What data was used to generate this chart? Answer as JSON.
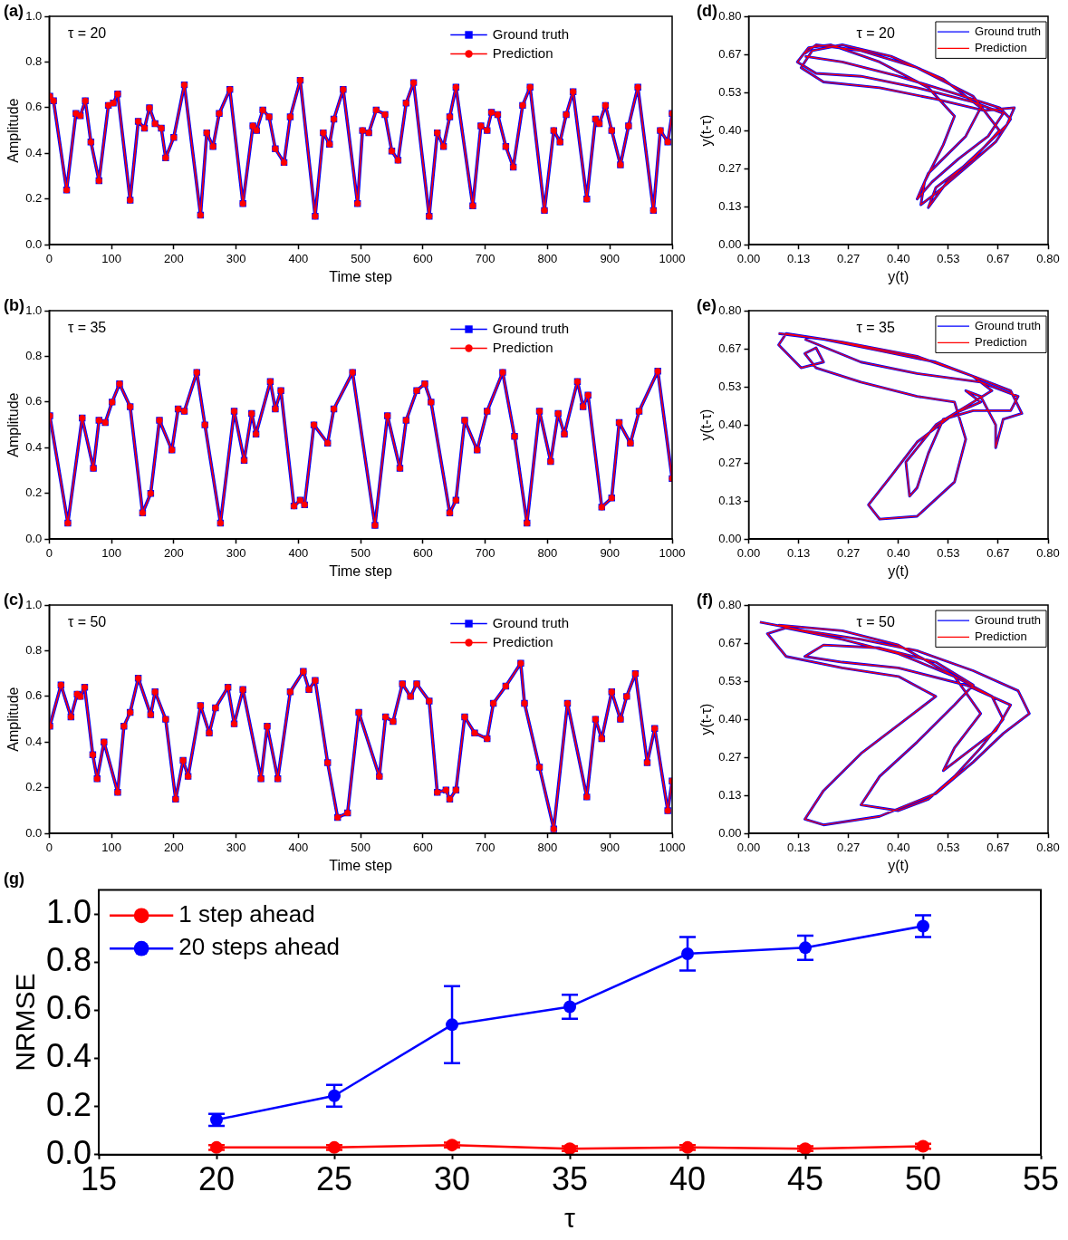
{
  "chart_data": [
    {
      "type": "line",
      "title": "(a)",
      "annotations": [
        "τ = 20"
      ],
      "xlabel": "Time step",
      "ylabel": "Amplitude",
      "legend": "top right",
      "grid": false,
      "xlim": [
        0,
        1000
      ],
      "ylim": [
        0,
        1
      ],
      "xticks": [
        0,
        100,
        200,
        300,
        400,
        500,
        600,
        700,
        800,
        900,
        1000
      ],
      "yticks": [
        {
          "value": 0,
          "label": "0.0"
        },
        {
          "value": 0.2,
          "label": "0.2"
        },
        {
          "value": 0.4,
          "label": "0.4"
        },
        {
          "value": 0.6,
          "label": "0.6"
        },
        {
          "value": 0.8,
          "label": "0.8"
        },
        {
          "value": 1,
          "label": "1.0"
        }
      ],
      "x": [
        1,
        7,
        28,
        43,
        50,
        58,
        67,
        80,
        95,
        103,
        110,
        130,
        143,
        153,
        161,
        170,
        180,
        187,
        200,
        217,
        243,
        253,
        263,
        273,
        290,
        311,
        327,
        333,
        343,
        353,
        363,
        377,
        387,
        403,
        427,
        440,
        450,
        457,
        472,
        495,
        503,
        513,
        525,
        539,
        550,
        560,
        573,
        585,
        610,
        623,
        633,
        643,
        653,
        680,
        693,
        703,
        710,
        720,
        733,
        745,
        760,
        772,
        795,
        810,
        820,
        830,
        841,
        863,
        877,
        883,
        893,
        903,
        917,
        930,
        945,
        970,
        981,
        993,
        1000
      ],
      "series": [
        {
          "name": "Ground truth",
          "color": "#0000ff",
          "marker": "square",
          "values": [
            0.65,
            0.63,
            0.24,
            0.575,
            0.565,
            0.63,
            0.45,
            0.28,
            0.61,
            0.62,
            0.66,
            0.195,
            0.54,
            0.51,
            0.6,
            0.53,
            0.51,
            0.38,
            0.47,
            0.7,
            0.13,
            0.49,
            0.43,
            0.575,
            0.68,
            0.18,
            0.52,
            0.5,
            0.59,
            0.56,
            0.42,
            0.36,
            0.56,
            0.72,
            0.125,
            0.49,
            0.44,
            0.55,
            0.68,
            0.18,
            0.5,
            0.49,
            0.59,
            0.57,
            0.41,
            0.37,
            0.62,
            0.71,
            0.125,
            0.49,
            0.43,
            0.56,
            0.69,
            0.17,
            0.52,
            0.5,
            0.58,
            0.57,
            0.43,
            0.34,
            0.61,
            0.69,
            0.15,
            0.5,
            0.45,
            0.57,
            0.67,
            0.2,
            0.55,
            0.53,
            0.61,
            0.5,
            0.35,
            0.52,
            0.69,
            0.15,
            0.5,
            0.45,
            0.575
          ]
        },
        {
          "name": "Prediction",
          "color": "#ff0000",
          "marker": "circle",
          "values": [
            0.65,
            0.63,
            0.24,
            0.575,
            0.565,
            0.63,
            0.45,
            0.28,
            0.61,
            0.62,
            0.66,
            0.195,
            0.54,
            0.51,
            0.6,
            0.53,
            0.51,
            0.38,
            0.47,
            0.7,
            0.13,
            0.49,
            0.43,
            0.575,
            0.68,
            0.18,
            0.52,
            0.5,
            0.59,
            0.56,
            0.42,
            0.36,
            0.56,
            0.72,
            0.125,
            0.49,
            0.44,
            0.55,
            0.68,
            0.18,
            0.5,
            0.49,
            0.59,
            0.57,
            0.41,
            0.37,
            0.62,
            0.71,
            0.125,
            0.49,
            0.43,
            0.56,
            0.69,
            0.17,
            0.52,
            0.5,
            0.58,
            0.57,
            0.43,
            0.34,
            0.61,
            0.69,
            0.15,
            0.5,
            0.45,
            0.57,
            0.67,
            0.2,
            0.55,
            0.53,
            0.61,
            0.5,
            0.35,
            0.52,
            0.69,
            0.15,
            0.5,
            0.45,
            0.575
          ]
        }
      ]
    },
    {
      "type": "line",
      "title": "(d)",
      "annotations": [
        "τ = 20"
      ],
      "xlabel": "y(t)",
      "ylabel": "y(t-τ)",
      "legend": "top right",
      "grid": false,
      "xlim": [
        0,
        0.8
      ],
      "ylim": [
        0,
        0.8
      ],
      "xticks": [
        {
          "value": 0,
          "label": "0.00"
        },
        {
          "value": 0.1333,
          "label": "0.13"
        },
        {
          "value": 0.2667,
          "label": "0.27"
        },
        {
          "value": 0.4,
          "label": "0.40"
        },
        {
          "value": 0.5333,
          "label": "0.53"
        },
        {
          "value": 0.6667,
          "label": "0.67"
        },
        {
          "value": 0.8,
          "label": "0.80"
        }
      ],
      "yticks": [
        {
          "value": 0,
          "label": "0.00"
        },
        {
          "value": 0.1333,
          "label": "0.13"
        },
        {
          "value": 0.2667,
          "label": "0.27"
        },
        {
          "value": 0.4,
          "label": "0.40"
        },
        {
          "value": 0.5333,
          "label": "0.53"
        },
        {
          "value": 0.6667,
          "label": "0.67"
        },
        {
          "value": 0.8,
          "label": "0.80"
        }
      ],
      "series": [
        {
          "name": "Ground truth",
          "color": "#0000ff",
          "marker": "none",
          "x": [
            0.15,
            0.25,
            0.4,
            0.55,
            0.67,
            0.7,
            0.66,
            0.58,
            0.5,
            0.46,
            0.47,
            0.52,
            0.55,
            0.48,
            0.35,
            0.22,
            0.16,
            0.13,
            0.18,
            0.3,
            0.45,
            0.6,
            0.68,
            0.64,
            0.56,
            0.49,
            0.45,
            0.48,
            0.58,
            0.62,
            0.52,
            0.38,
            0.25,
            0.17,
            0.14,
            0.2,
            0.35,
            0.5,
            0.63,
            0.71,
            0.69,
            0.62,
            0.53,
            0.48,
            0.5,
            0.6,
            0.67,
            0.6,
            0.45,
            0.3,
            0.18,
            0.15
          ],
          "values": [
            0.66,
            0.64,
            0.59,
            0.53,
            0.48,
            0.44,
            0.36,
            0.27,
            0.18,
            0.14,
            0.22,
            0.35,
            0.45,
            0.55,
            0.64,
            0.7,
            0.69,
            0.64,
            0.6,
            0.59,
            0.55,
            0.5,
            0.46,
            0.38,
            0.3,
            0.22,
            0.16,
            0.25,
            0.38,
            0.48,
            0.58,
            0.66,
            0.7,
            0.68,
            0.62,
            0.57,
            0.55,
            0.51,
            0.47,
            0.48,
            0.42,
            0.33,
            0.22,
            0.13,
            0.2,
            0.3,
            0.4,
            0.52,
            0.62,
            0.68,
            0.7,
            0.67
          ]
        },
        {
          "name": "Prediction",
          "color": "#ff0000",
          "marker": "none",
          "x": [
            0.15,
            0.25,
            0.4,
            0.55,
            0.67,
            0.7,
            0.66,
            0.58,
            0.5,
            0.46,
            0.47,
            0.52,
            0.55,
            0.48,
            0.35,
            0.22,
            0.16,
            0.13,
            0.18,
            0.3,
            0.45,
            0.6,
            0.68,
            0.64,
            0.56,
            0.49,
            0.45,
            0.48,
            0.58,
            0.62,
            0.52,
            0.38,
            0.25,
            0.17,
            0.14,
            0.2,
            0.35,
            0.5,
            0.63,
            0.71,
            0.69,
            0.62,
            0.53,
            0.48,
            0.5,
            0.6,
            0.67,
            0.6,
            0.45,
            0.3,
            0.18,
            0.15
          ],
          "values": [
            0.66,
            0.64,
            0.59,
            0.53,
            0.48,
            0.44,
            0.36,
            0.27,
            0.18,
            0.14,
            0.22,
            0.35,
            0.45,
            0.55,
            0.64,
            0.7,
            0.69,
            0.64,
            0.6,
            0.59,
            0.55,
            0.5,
            0.46,
            0.38,
            0.3,
            0.22,
            0.16,
            0.25,
            0.38,
            0.48,
            0.58,
            0.66,
            0.7,
            0.68,
            0.62,
            0.57,
            0.55,
            0.51,
            0.47,
            0.48,
            0.42,
            0.33,
            0.22,
            0.13,
            0.2,
            0.3,
            0.4,
            0.52,
            0.62,
            0.68,
            0.7,
            0.67
          ]
        }
      ]
    },
    {
      "type": "line",
      "title": "(b)",
      "annotations": [
        "τ = 35"
      ],
      "xlabel": "Time step",
      "ylabel": "Amplitude",
      "legend": "top right",
      "grid": false,
      "xlim": [
        0,
        1000
      ],
      "ylim": [
        0,
        1
      ],
      "xticks": [
        0,
        100,
        200,
        300,
        400,
        500,
        600,
        700,
        800,
        900,
        1000
      ],
      "yticks": [
        {
          "value": 0,
          "label": "0.0"
        },
        {
          "value": 0.2,
          "label": "0.2"
        },
        {
          "value": 0.4,
          "label": "0.4"
        },
        {
          "value": 0.6,
          "label": "0.6"
        },
        {
          "value": 0.8,
          "label": "0.8"
        },
        {
          "value": 1,
          "label": "1.0"
        }
      ],
      "x": [
        1,
        30,
        53,
        71,
        80,
        90,
        101,
        113,
        130,
        150,
        163,
        177,
        197,
        207,
        217,
        237,
        250,
        275,
        297,
        313,
        325,
        332,
        355,
        363,
        372,
        393,
        403,
        410,
        425,
        447,
        457,
        487,
        523,
        543,
        563,
        573,
        590,
        603,
        613,
        643,
        653,
        667,
        687,
        703,
        728,
        747,
        767,
        787,
        805,
        817,
        827,
        848,
        857,
        865,
        887,
        903,
        915,
        933,
        947,
        977,
        1000
      ],
      "series": [
        {
          "name": "Ground truth",
          "color": "#0000ff",
          "marker": "square",
          "values": [
            0.54,
            0.07,
            0.53,
            0.31,
            0.52,
            0.51,
            0.6,
            0.68,
            0.58,
            0.115,
            0.2,
            0.52,
            0.39,
            0.57,
            0.56,
            0.73,
            0.5,
            0.07,
            0.56,
            0.345,
            0.55,
            0.46,
            0.69,
            0.57,
            0.65,
            0.145,
            0.17,
            0.15,
            0.5,
            0.42,
            0.57,
            0.73,
            0.06,
            0.54,
            0.31,
            0.52,
            0.65,
            0.68,
            0.6,
            0.115,
            0.17,
            0.52,
            0.39,
            0.56,
            0.73,
            0.45,
            0.07,
            0.56,
            0.34,
            0.55,
            0.46,
            0.69,
            0.58,
            0.63,
            0.14,
            0.18,
            0.51,
            0.42,
            0.56,
            0.735,
            0.265
          ]
        },
        {
          "name": "Prediction",
          "color": "#ff0000",
          "marker": "circle",
          "values": [
            0.54,
            0.07,
            0.53,
            0.31,
            0.52,
            0.51,
            0.6,
            0.68,
            0.58,
            0.115,
            0.2,
            0.52,
            0.39,
            0.57,
            0.56,
            0.73,
            0.5,
            0.07,
            0.56,
            0.345,
            0.55,
            0.46,
            0.69,
            0.57,
            0.65,
            0.145,
            0.17,
            0.15,
            0.5,
            0.42,
            0.57,
            0.73,
            0.06,
            0.54,
            0.31,
            0.52,
            0.65,
            0.68,
            0.6,
            0.115,
            0.17,
            0.52,
            0.39,
            0.56,
            0.73,
            0.45,
            0.07,
            0.56,
            0.34,
            0.55,
            0.46,
            0.69,
            0.58,
            0.63,
            0.14,
            0.18,
            0.51,
            0.42,
            0.56,
            0.735,
            0.265
          ]
        }
      ]
    },
    {
      "type": "line",
      "title": "(e)",
      "annotations": [
        "τ = 35"
      ],
      "xlabel": "y(t)",
      "ylabel": "y(t-τ)",
      "legend": "top right",
      "grid": false,
      "xlim": [
        0,
        0.8
      ],
      "ylim": [
        0,
        0.8
      ],
      "xticks": [
        {
          "value": 0,
          "label": "0.00"
        },
        {
          "value": 0.1333,
          "label": "0.13"
        },
        {
          "value": 0.2667,
          "label": "0.27"
        },
        {
          "value": 0.4,
          "label": "0.40"
        },
        {
          "value": 0.5333,
          "label": "0.53"
        },
        {
          "value": 0.6667,
          "label": "0.67"
        },
        {
          "value": 0.8,
          "label": "0.80"
        }
      ],
      "yticks": [
        {
          "value": 0,
          "label": "0.00"
        },
        {
          "value": 0.1333,
          "label": "0.13"
        },
        {
          "value": 0.2667,
          "label": "0.27"
        },
        {
          "value": 0.4,
          "label": "0.40"
        },
        {
          "value": 0.5333,
          "label": "0.53"
        },
        {
          "value": 0.6667,
          "label": "0.67"
        },
        {
          "value": 0.8,
          "label": "0.80"
        }
      ],
      "series": [
        {
          "name": "Ground truth",
          "color": "#0000ff",
          "marker": "none",
          "x": [
            0.08,
            0.2,
            0.35,
            0.5,
            0.62,
            0.7,
            0.73,
            0.68,
            0.66,
            0.66,
            0.62,
            0.58,
            0.62,
            0.55,
            0.45,
            0.38,
            0.32,
            0.35,
            0.45,
            0.55,
            0.58,
            0.55,
            0.45,
            0.3,
            0.18,
            0.15,
            0.18,
            0.2,
            0.14,
            0.08,
            0.1,
            0.25,
            0.45,
            0.6,
            0.65,
            0.6,
            0.5,
            0.42,
            0.43,
            0.45,
            0.48,
            0.52,
            0.6,
            0.7,
            0.72,
            0.62,
            0.45,
            0.3,
            0.15
          ],
          "values": [
            0.72,
            0.7,
            0.66,
            0.62,
            0.56,
            0.52,
            0.44,
            0.42,
            0.32,
            0.4,
            0.5,
            0.52,
            0.48,
            0.44,
            0.34,
            0.22,
            0.12,
            0.07,
            0.08,
            0.2,
            0.35,
            0.48,
            0.5,
            0.55,
            0.6,
            0.65,
            0.67,
            0.62,
            0.6,
            0.68,
            0.72,
            0.69,
            0.64,
            0.57,
            0.52,
            0.48,
            0.4,
            0.27,
            0.15,
            0.18,
            0.3,
            0.42,
            0.45,
            0.45,
            0.5,
            0.55,
            0.58,
            0.62,
            0.7
          ]
        },
        {
          "name": "Prediction",
          "color": "#ff0000",
          "marker": "none",
          "x": [
            0.08,
            0.2,
            0.35,
            0.5,
            0.62,
            0.7,
            0.73,
            0.68,
            0.66,
            0.66,
            0.62,
            0.58,
            0.62,
            0.55,
            0.45,
            0.38,
            0.32,
            0.35,
            0.45,
            0.55,
            0.58,
            0.55,
            0.45,
            0.3,
            0.18,
            0.15,
            0.18,
            0.2,
            0.14,
            0.08,
            0.1,
            0.25,
            0.45,
            0.6,
            0.65,
            0.6,
            0.5,
            0.42,
            0.43,
            0.45,
            0.48,
            0.52,
            0.6,
            0.7,
            0.72,
            0.62,
            0.45,
            0.3,
            0.15
          ],
          "values": [
            0.72,
            0.7,
            0.66,
            0.62,
            0.56,
            0.52,
            0.44,
            0.42,
            0.32,
            0.4,
            0.5,
            0.52,
            0.48,
            0.44,
            0.34,
            0.22,
            0.12,
            0.07,
            0.08,
            0.2,
            0.35,
            0.48,
            0.5,
            0.55,
            0.6,
            0.65,
            0.67,
            0.62,
            0.6,
            0.68,
            0.72,
            0.69,
            0.64,
            0.57,
            0.52,
            0.48,
            0.4,
            0.27,
            0.15,
            0.18,
            0.3,
            0.42,
            0.45,
            0.45,
            0.5,
            0.55,
            0.58,
            0.62,
            0.7
          ]
        }
      ]
    },
    {
      "type": "line",
      "title": "(c)",
      "annotations": [
        "τ = 50"
      ],
      "xlabel": "Time step",
      "ylabel": "Amplitude",
      "legend": "top right",
      "grid": false,
      "xlim": [
        0,
        1000
      ],
      "ylim": [
        0,
        1
      ],
      "xticks": [
        0,
        100,
        200,
        300,
        400,
        500,
        600,
        700,
        800,
        900,
        1000
      ],
      "yticks": [
        {
          "value": 0,
          "label": "0.0"
        },
        {
          "value": 0.2,
          "label": "0.2"
        },
        {
          "value": 0.4,
          "label": "0.4"
        },
        {
          "value": 0.6,
          "label": "0.6"
        },
        {
          "value": 0.8,
          "label": "0.8"
        },
        {
          "value": 1,
          "label": "1.0"
        }
      ],
      "x": [
        1,
        19,
        35,
        45,
        50,
        57,
        70,
        77,
        88,
        110,
        120,
        130,
        143,
        163,
        170,
        187,
        203,
        215,
        223,
        243,
        257,
        267,
        287,
        297,
        311,
        340,
        350,
        367,
        387,
        408,
        417,
        427,
        447,
        463,
        479,
        497,
        530,
        540,
        552,
        567,
        580,
        590,
        610,
        623,
        637,
        643,
        653,
        667,
        683,
        703,
        713,
        733,
        757,
        763,
        787,
        810,
        832,
        863,
        877,
        887,
        903,
        917,
        927,
        941,
        960,
        972,
        993,
        1000
      ],
      "series": [
        {
          "name": "Ground truth",
          "color": "#0000ff",
          "marker": "square",
          "values": [
            0.47,
            0.65,
            0.51,
            0.61,
            0.6,
            0.64,
            0.345,
            0.24,
            0.4,
            0.18,
            0.47,
            0.53,
            0.68,
            0.52,
            0.62,
            0.5,
            0.15,
            0.32,
            0.25,
            0.56,
            0.44,
            0.55,
            0.64,
            0.48,
            0.63,
            0.24,
            0.47,
            0.24,
            0.62,
            0.71,
            0.63,
            0.67,
            0.31,
            0.07,
            0.09,
            0.53,
            0.25,
            0.51,
            0.49,
            0.655,
            0.6,
            0.655,
            0.58,
            0.18,
            0.19,
            0.15,
            0.19,
            0.51,
            0.44,
            0.415,
            0.57,
            0.645,
            0.745,
            0.57,
            0.29,
            0.02,
            0.57,
            0.16,
            0.5,
            0.415,
            0.62,
            0.5,
            0.6,
            0.7,
            0.31,
            0.46,
            0.1,
            0.23
          ]
        },
        {
          "name": "Prediction",
          "color": "#ff0000",
          "marker": "circle",
          "values": [
            0.47,
            0.65,
            0.51,
            0.61,
            0.6,
            0.64,
            0.345,
            0.24,
            0.4,
            0.18,
            0.47,
            0.53,
            0.68,
            0.52,
            0.62,
            0.5,
            0.15,
            0.32,
            0.25,
            0.56,
            0.44,
            0.55,
            0.64,
            0.48,
            0.63,
            0.24,
            0.47,
            0.24,
            0.62,
            0.71,
            0.63,
            0.67,
            0.31,
            0.07,
            0.09,
            0.53,
            0.25,
            0.51,
            0.49,
            0.655,
            0.6,
            0.655,
            0.58,
            0.18,
            0.19,
            0.15,
            0.19,
            0.51,
            0.44,
            0.415,
            0.57,
            0.645,
            0.745,
            0.57,
            0.29,
            0.02,
            0.57,
            0.16,
            0.5,
            0.415,
            0.62,
            0.5,
            0.6,
            0.7,
            0.31,
            0.46,
            0.1,
            0.23
          ]
        }
      ]
    },
    {
      "type": "line",
      "title": "(f)",
      "annotations": [
        "τ = 50"
      ],
      "xlabel": "y(t)",
      "ylabel": "y(t-τ)",
      "legend": "top right",
      "grid": false,
      "xlim": [
        0,
        0.8
      ],
      "ylim": [
        0,
        0.8
      ],
      "xticks": [
        {
          "value": 0,
          "label": "0.00"
        },
        {
          "value": 0.1333,
          "label": "0.13"
        },
        {
          "value": 0.2667,
          "label": "0.27"
        },
        {
          "value": 0.4,
          "label": "0.40"
        },
        {
          "value": 0.5333,
          "label": "0.53"
        },
        {
          "value": 0.6667,
          "label": "0.67"
        },
        {
          "value": 0.8,
          "label": "0.80"
        }
      ],
      "yticks": [
        {
          "value": 0,
          "label": "0.00"
        },
        {
          "value": 0.1333,
          "label": "0.13"
        },
        {
          "value": 0.2667,
          "label": "0.27"
        },
        {
          "value": 0.4,
          "label": "0.40"
        },
        {
          "value": 0.5333,
          "label": "0.53"
        },
        {
          "value": 0.6667,
          "label": "0.67"
        },
        {
          "value": 0.8,
          "label": "0.80"
        }
      ],
      "series": [
        {
          "name": "Ground truth",
          "color": "#0000ff",
          "marker": "none",
          "x": [
            0.03,
            0.15,
            0.3,
            0.45,
            0.6,
            0.72,
            0.75,
            0.68,
            0.6,
            0.5,
            0.35,
            0.2,
            0.15,
            0.2,
            0.3,
            0.42,
            0.5,
            0.4,
            0.25,
            0.1,
            0.05,
            0.1,
            0.25,
            0.4,
            0.55,
            0.65,
            0.68,
            0.62,
            0.55,
            0.48,
            0.4,
            0.3,
            0.35,
            0.45,
            0.55,
            0.6,
            0.5,
            0.35,
            0.2,
            0.15,
            0.25,
            0.4,
            0.58,
            0.7,
            0.66,
            0.58,
            0.52,
            0.55,
            0.62,
            0.55,
            0.4,
            0.25,
            0.08
          ],
          "values": [
            0.74,
            0.71,
            0.68,
            0.64,
            0.57,
            0.5,
            0.42,
            0.35,
            0.25,
            0.14,
            0.06,
            0.03,
            0.05,
            0.15,
            0.28,
            0.4,
            0.48,
            0.55,
            0.58,
            0.62,
            0.7,
            0.72,
            0.68,
            0.63,
            0.55,
            0.48,
            0.4,
            0.3,
            0.2,
            0.12,
            0.08,
            0.1,
            0.2,
            0.32,
            0.45,
            0.52,
            0.6,
            0.65,
            0.66,
            0.62,
            0.6,
            0.58,
            0.52,
            0.45,
            0.36,
            0.28,
            0.22,
            0.3,
            0.42,
            0.55,
            0.66,
            0.71,
            0.73
          ]
        },
        {
          "name": "Prediction",
          "color": "#ff0000",
          "marker": "none",
          "x": [
            0.03,
            0.15,
            0.3,
            0.45,
            0.6,
            0.72,
            0.75,
            0.68,
            0.6,
            0.5,
            0.35,
            0.2,
            0.15,
            0.2,
            0.3,
            0.42,
            0.5,
            0.4,
            0.25,
            0.1,
            0.05,
            0.1,
            0.25,
            0.4,
            0.55,
            0.65,
            0.68,
            0.62,
            0.55,
            0.48,
            0.4,
            0.3,
            0.35,
            0.45,
            0.55,
            0.6,
            0.5,
            0.35,
            0.2,
            0.15,
            0.25,
            0.4,
            0.58,
            0.7,
            0.66,
            0.58,
            0.52,
            0.55,
            0.62,
            0.55,
            0.4,
            0.25,
            0.08
          ],
          "values": [
            0.74,
            0.71,
            0.68,
            0.64,
            0.57,
            0.5,
            0.42,
            0.35,
            0.25,
            0.14,
            0.06,
            0.03,
            0.05,
            0.15,
            0.28,
            0.4,
            0.48,
            0.55,
            0.58,
            0.62,
            0.7,
            0.72,
            0.68,
            0.63,
            0.55,
            0.48,
            0.4,
            0.3,
            0.2,
            0.12,
            0.08,
            0.1,
            0.2,
            0.32,
            0.45,
            0.52,
            0.6,
            0.65,
            0.66,
            0.62,
            0.6,
            0.58,
            0.52,
            0.45,
            0.36,
            0.28,
            0.22,
            0.3,
            0.42,
            0.55,
            0.66,
            0.71,
            0.73
          ]
        }
      ]
    },
    {
      "type": "line",
      "title": "(g)",
      "xlabel": "τ",
      "ylabel": "NRMSE",
      "legend": "top left",
      "grid": false,
      "marker": "circle",
      "xlim": [
        15,
        55
      ],
      "ylim": [
        0,
        1.1
      ],
      "xticks": [
        15,
        20,
        25,
        30,
        35,
        40,
        45,
        50,
        55
      ],
      "yticks": [
        {
          "value": 0,
          "label": "0.0"
        },
        {
          "value": 0.2,
          "label": "0.2"
        },
        {
          "value": 0.4,
          "label": "0.4"
        },
        {
          "value": 0.6,
          "label": "0.6"
        },
        {
          "value": 0.8,
          "label": "0.8"
        },
        {
          "value": 1,
          "label": "1.0"
        }
      ],
      "x": [
        20,
        25,
        30,
        35,
        40,
        45,
        50
      ],
      "series": [
        {
          "name": "1 step ahead",
          "color": "#ff0000",
          "values": [
            0.03,
            0.03,
            0.04,
            0.025,
            0.03,
            0.025,
            0.035
          ],
          "errors": [
            0.01,
            0.01,
            0.01,
            0.01,
            0.01,
            0.01,
            0.01
          ]
        },
        {
          "name": "20 steps ahead",
          "color": "#0000ff",
          "values": [
            0.145,
            0.245,
            0.54,
            0.615,
            0.835,
            0.86,
            0.95
          ],
          "errors": [
            0.025,
            0.045,
            0.16,
            0.05,
            0.07,
            0.05,
            0.045
          ]
        }
      ]
    }
  ]
}
